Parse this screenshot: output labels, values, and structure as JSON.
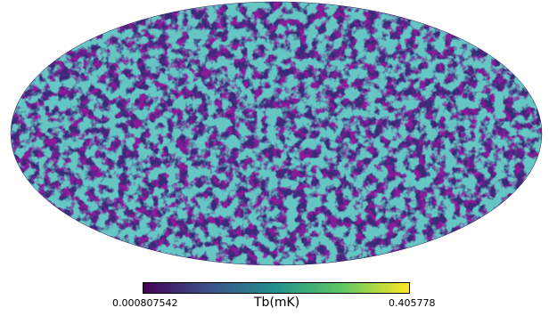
{
  "map": {
    "projection": "mollweide",
    "colormap": [
      "#440154",
      "#3b528b",
      "#21918c",
      "#5ec962",
      "#fde725"
    ],
    "background_color": "#3a2a78"
  },
  "colorbar": {
    "min_label": "0.000807542",
    "max_label": "0.405778",
    "unit_label": "Tb(mK)"
  }
}
